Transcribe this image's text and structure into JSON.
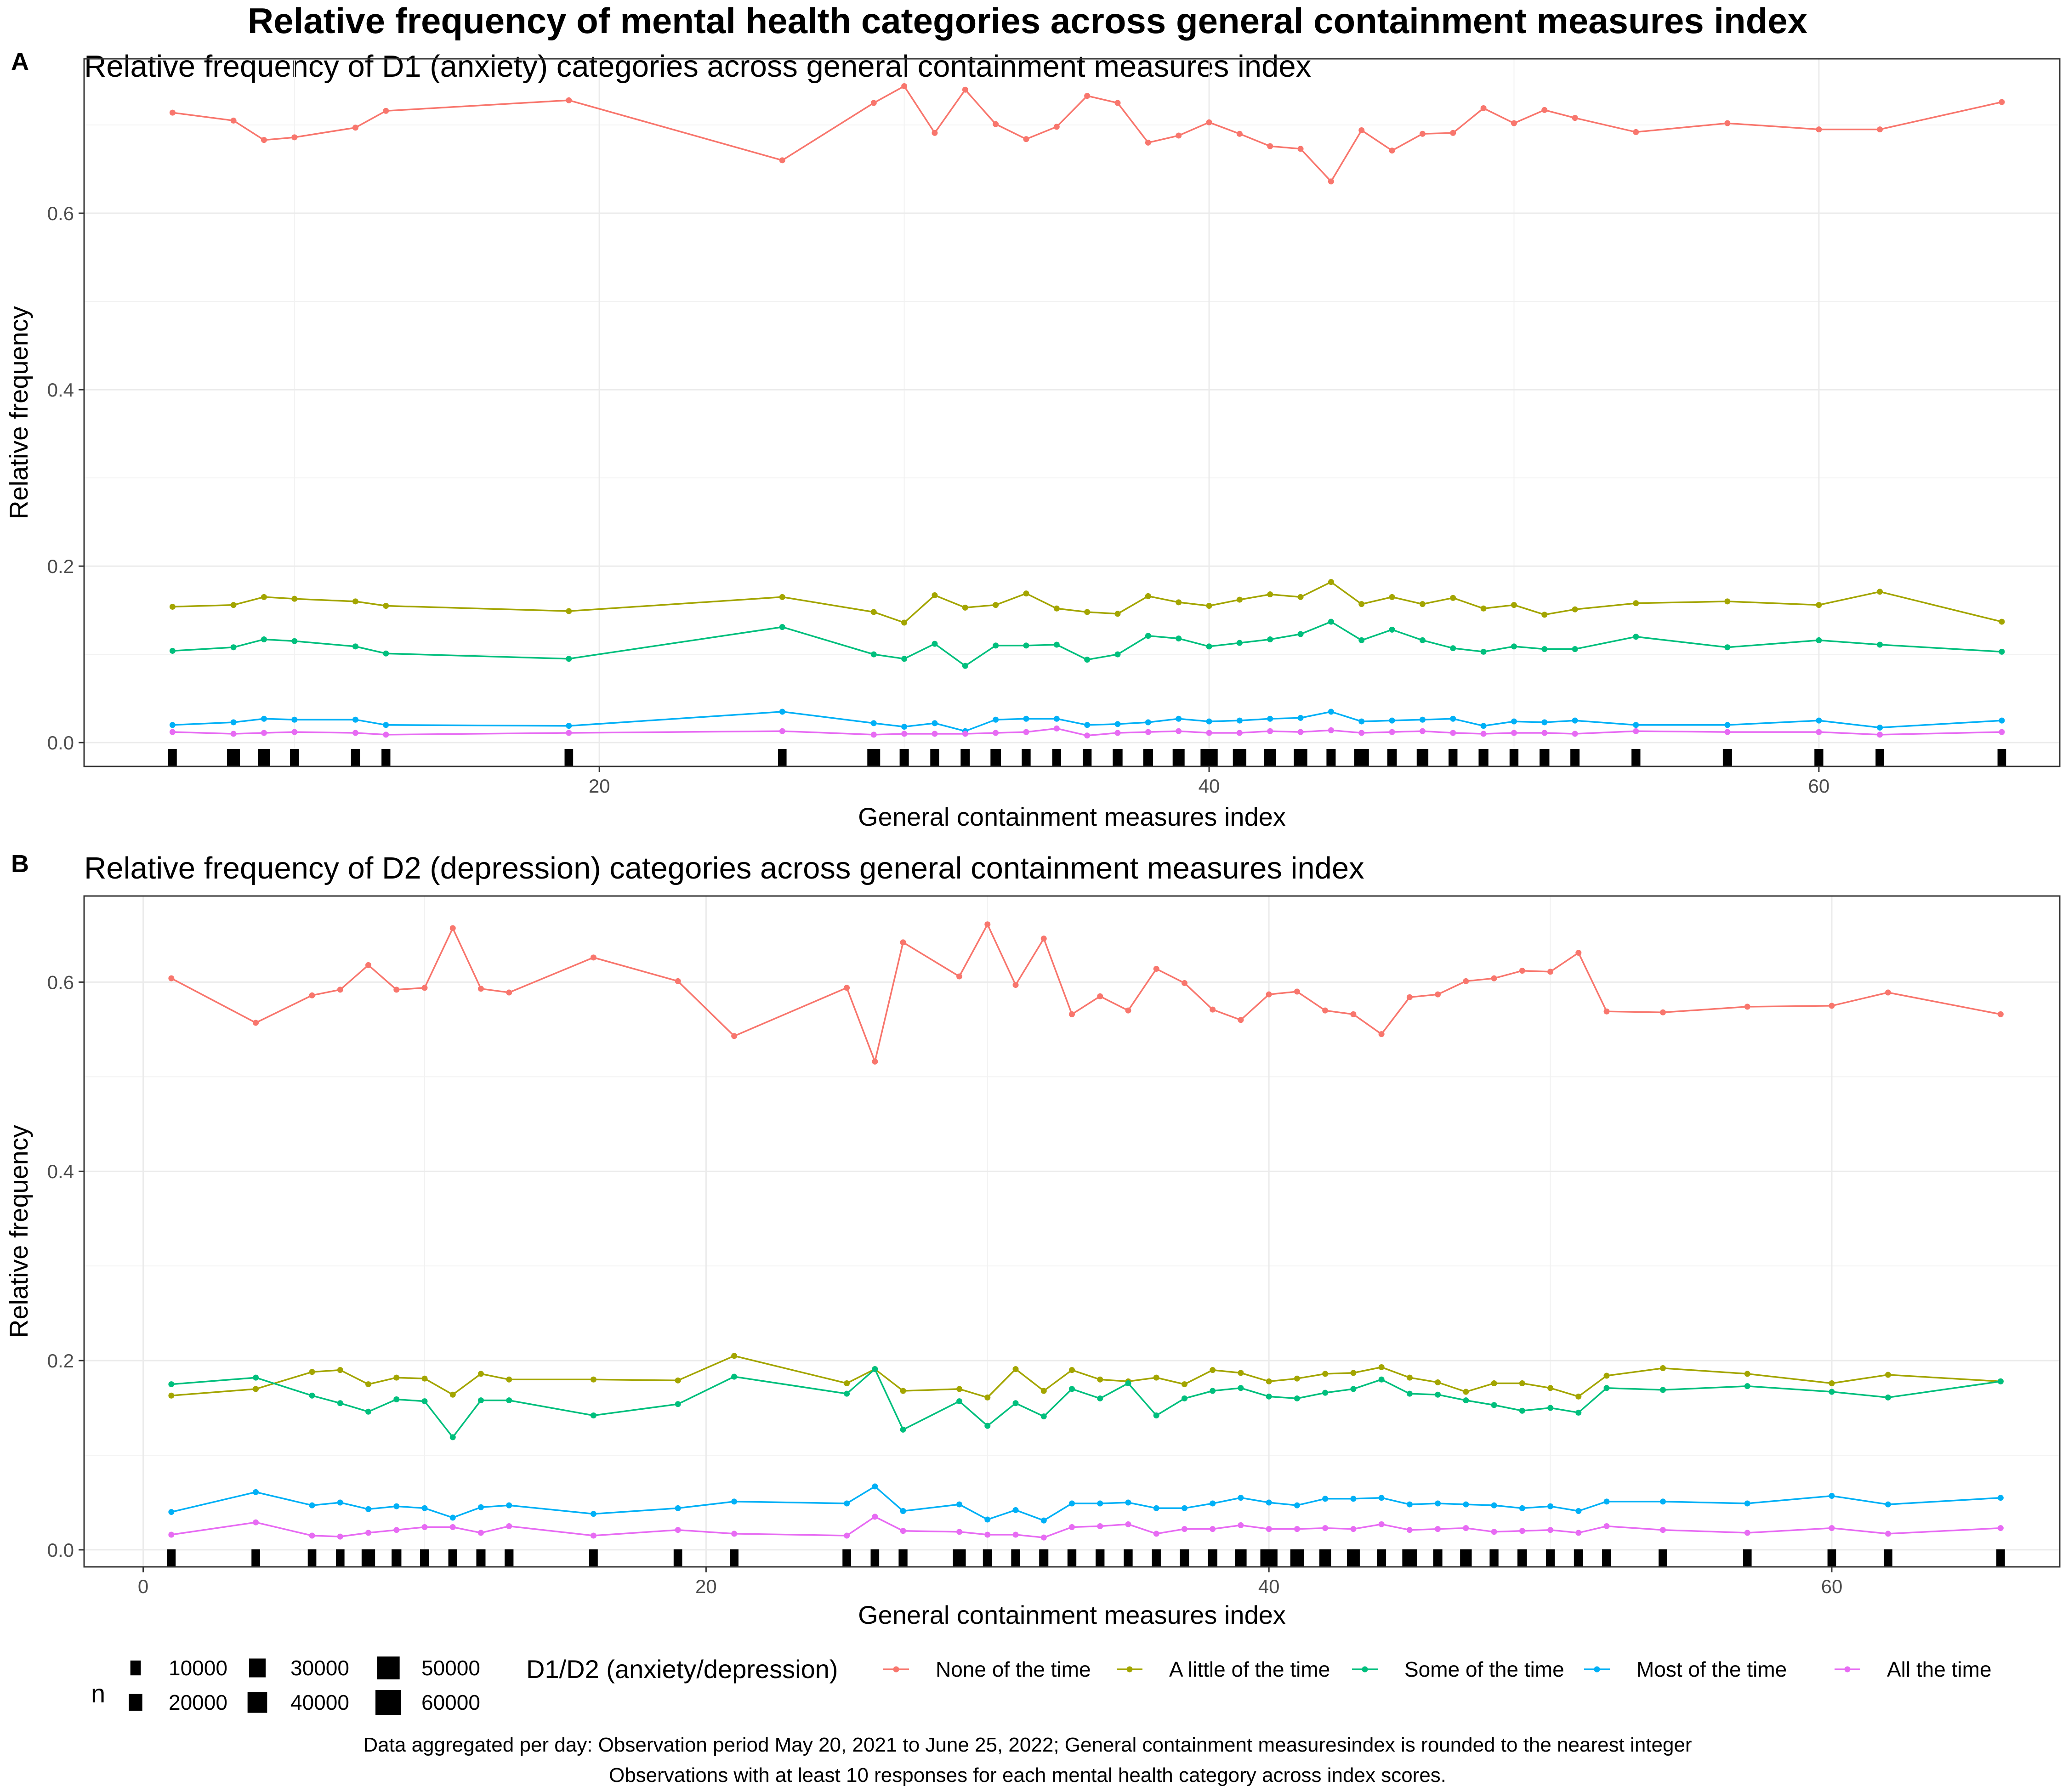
{
  "title": "Relative frequency of mental health categories across general containment measures index",
  "caption": [
    "Data aggregated per day: Observation period May 20, 2021 to June 25, 2022; General containment measuresindex is rounded to the nearest integer",
    "Observations with at least 10 responses for each mental health category across index scores."
  ],
  "legend": {
    "size_title": "n",
    "size_levels": [
      {
        "label": "10000",
        "value": 10000
      },
      {
        "label": "20000",
        "value": 20000
      },
      {
        "label": "30000",
        "value": 30000
      },
      {
        "label": "40000",
        "value": 40000
      },
      {
        "label": "50000",
        "value": 50000
      },
      {
        "label": "60000",
        "value": 60000
      }
    ],
    "color_title": "D1/D2 (anxiety/depression)",
    "categories": [
      {
        "name": "None of the time",
        "color": "#F8766D"
      },
      {
        "name": "A little of the time",
        "color": "#A3A500"
      },
      {
        "name": "Some of the time",
        "color": "#00BF7D"
      },
      {
        "name": "Most of the time",
        "color": "#00B0F6"
      },
      {
        "name": "All the time",
        "color": "#E76BF3"
      }
    ]
  },
  "chart_data": [
    {
      "tag": "A",
      "type": "line",
      "title": "Relative frequency of D1 (anxiety) categories across general containment measures index",
      "xlabel": "General containment measures index",
      "ylabel": "Relative frequency",
      "xlim": [
        3.1,
        67.9
      ],
      "ylim": [
        -0.027,
        0.775
      ],
      "xticks": [
        20,
        40,
        60
      ],
      "yticks": [
        0.0,
        0.2,
        0.4,
        0.6
      ],
      "ytick_labels": [
        "0.0",
        "0.2",
        "0.4",
        "0.6"
      ],
      "x": [
        6,
        8,
        9,
        10,
        12,
        13,
        19,
        26,
        29,
        30,
        31,
        32,
        33,
        34,
        35,
        36,
        37,
        38,
        39,
        40,
        41,
        42,
        43,
        44,
        45,
        46,
        47,
        48,
        49,
        50,
        51,
        52,
        54,
        57,
        60,
        62,
        66
      ],
      "n": [
        4000,
        18000,
        16000,
        5000,
        5000,
        5000,
        4000,
        4000,
        18000,
        6000,
        5000,
        6000,
        10000,
        5000,
        5000,
        5000,
        8000,
        8000,
        15000,
        32000,
        20000,
        15000,
        20000,
        6000,
        24000,
        7000,
        14000,
        5000,
        8000,
        5000,
        8000,
        6000,
        5000,
        6000,
        5000,
        4000,
        4000
      ],
      "series": [
        {
          "name": "None of the time",
          "values": [
            0.714,
            0.705,
            0.683,
            0.686,
            0.697,
            0.716,
            0.728,
            0.66,
            0.725,
            0.744,
            0.691,
            0.74,
            0.701,
            0.684,
            0.698,
            0.733,
            0.725,
            0.68,
            0.688,
            0.703,
            0.69,
            0.676,
            0.673,
            0.636,
            0.694,
            0.671,
            0.69,
            0.691,
            0.719,
            0.702,
            0.717,
            0.708,
            0.692,
            0.702,
            0.695,
            0.695,
            0.726
          ]
        },
        {
          "name": "A little of the time",
          "values": [
            0.154,
            0.156,
            0.165,
            0.163,
            0.16,
            0.155,
            0.149,
            0.165,
            0.148,
            0.136,
            0.167,
            0.153,
            0.156,
            0.169,
            0.152,
            0.148,
            0.146,
            0.166,
            0.159,
            0.155,
            0.162,
            0.168,
            0.165,
            0.182,
            0.157,
            0.165,
            0.157,
            0.164,
            0.152,
            0.156,
            0.145,
            0.151,
            0.158,
            0.16,
            0.156,
            0.171,
            0.137
          ]
        },
        {
          "name": "Some of the time",
          "values": [
            0.104,
            0.108,
            0.117,
            0.115,
            0.109,
            0.101,
            0.095,
            0.131,
            0.1,
            0.095,
            0.112,
            0.087,
            0.11,
            0.11,
            0.111,
            0.094,
            0.1,
            0.121,
            0.118,
            0.109,
            0.113,
            0.117,
            0.123,
            0.137,
            0.116,
            0.128,
            0.116,
            0.107,
            0.103,
            0.109,
            0.106,
            0.106,
            0.12,
            0.108,
            0.116,
            0.111,
            0.103
          ]
        },
        {
          "name": "Most of the time",
          "values": [
            0.02,
            0.023,
            0.027,
            0.026,
            0.026,
            0.02,
            0.019,
            0.035,
            0.022,
            0.018,
            0.022,
            0.013,
            0.026,
            0.027,
            0.027,
            0.02,
            0.021,
            0.023,
            0.027,
            0.024,
            0.025,
            0.027,
            0.028,
            0.035,
            0.024,
            0.025,
            0.026,
            0.027,
            0.019,
            0.024,
            0.023,
            0.025,
            0.02,
            0.02,
            0.025,
            0.017,
            0.025
          ]
        },
        {
          "name": "All the time",
          "values": [
            0.012,
            0.01,
            0.011,
            0.012,
            0.011,
            0.009,
            0.011,
            0.013,
            0.009,
            0.01,
            0.01,
            0.01,
            0.011,
            0.012,
            0.016,
            0.008,
            0.011,
            0.012,
            0.013,
            0.011,
            0.011,
            0.013,
            0.012,
            0.014,
            0.011,
            0.012,
            0.013,
            0.011,
            0.01,
            0.011,
            0.011,
            0.01,
            0.013,
            0.012,
            0.012,
            0.009,
            0.012
          ]
        }
      ]
    },
    {
      "tag": "B",
      "type": "line",
      "title": "Relative frequency of D2 (depression) categories across general containment measures index",
      "xlabel": "General containment measures index",
      "ylabel": "Relative frequency",
      "xlim": [
        -2.1,
        68.1
      ],
      "ylim": [
        -0.018,
        0.691
      ],
      "xticks": [
        0,
        20,
        40,
        60
      ],
      "yticks": [
        0.0,
        0.2,
        0.4,
        0.6
      ],
      "ytick_labels": [
        "0.0",
        "0.2",
        "0.4",
        "0.6"
      ],
      "x": [
        1,
        4,
        6,
        7,
        8,
        9,
        10,
        11,
        12,
        13,
        16,
        19,
        21,
        25,
        26,
        27,
        29,
        30,
        31,
        32,
        33,
        34,
        35,
        36,
        37,
        38,
        39,
        40,
        41,
        42,
        43,
        44,
        45,
        46,
        47,
        48,
        49,
        50,
        51,
        52,
        54,
        57,
        60,
        62,
        66
      ],
      "n": [
        4000,
        4000,
        4000,
        4000,
        20000,
        8000,
        6000,
        5000,
        6000,
        5000,
        4000,
        4000,
        4000,
        4000,
        4000,
        5000,
        18000,
        6000,
        5000,
        6000,
        5000,
        5000,
        5000,
        5000,
        6000,
        7000,
        14000,
        32000,
        20000,
        14000,
        18000,
        6000,
        24000,
        6000,
        14000,
        5000,
        7000,
        5000,
        6000,
        6000,
        4000,
        4000,
        4000,
        4000,
        4000
      ],
      "series": [
        {
          "name": "None of the time",
          "values": [
            0.604,
            0.557,
            0.586,
            0.592,
            0.618,
            0.592,
            0.594,
            0.657,
            0.593,
            0.589,
            0.626,
            0.601,
            0.543,
            0.594,
            0.516,
            0.642,
            0.606,
            0.661,
            0.597,
            0.646,
            0.566,
            0.585,
            0.57,
            0.614,
            0.599,
            0.571,
            0.56,
            0.587,
            0.59,
            0.57,
            0.566,
            0.545,
            0.584,
            0.587,
            0.601,
            0.604,
            0.612,
            0.611,
            0.631,
            0.569,
            0.568,
            0.574,
            0.575,
            0.589,
            0.566
          ]
        },
        {
          "name": "A little of the time",
          "values": [
            0.163,
            0.17,
            0.188,
            0.19,
            0.175,
            0.182,
            0.181,
            0.164,
            0.186,
            0.18,
            0.18,
            0.179,
            0.205,
            0.176,
            0.191,
            0.168,
            0.17,
            0.161,
            0.191,
            0.168,
            0.19,
            0.18,
            0.178,
            0.182,
            0.175,
            0.19,
            0.187,
            0.178,
            0.181,
            0.186,
            0.187,
            0.193,
            0.182,
            0.177,
            0.167,
            0.176,
            0.176,
            0.171,
            0.162,
            0.184,
            0.192,
            0.186,
            0.176,
            0.185,
            0.178
          ]
        },
        {
          "name": "Some of the time",
          "values": [
            0.175,
            0.182,
            0.163,
            0.155,
            0.146,
            0.159,
            0.157,
            0.119,
            0.158,
            0.158,
            0.142,
            0.154,
            0.183,
            0.165,
            0.191,
            0.127,
            0.157,
            0.131,
            0.155,
            0.141,
            0.17,
            0.16,
            0.176,
            0.142,
            0.16,
            0.168,
            0.171,
            0.162,
            0.16,
            0.166,
            0.17,
            0.18,
            0.165,
            0.164,
            0.158,
            0.153,
            0.147,
            0.15,
            0.145,
            0.171,
            0.169,
            0.173,
            0.167,
            0.161,
            0.178
          ]
        },
        {
          "name": "Most of the time",
          "values": [
            0.04,
            0.061,
            0.047,
            0.05,
            0.043,
            0.046,
            0.044,
            0.034,
            0.045,
            0.047,
            0.038,
            0.044,
            0.051,
            0.049,
            0.067,
            0.041,
            0.048,
            0.032,
            0.042,
            0.031,
            0.049,
            0.049,
            0.05,
            0.044,
            0.044,
            0.049,
            0.055,
            0.05,
            0.047,
            0.054,
            0.054,
            0.055,
            0.048,
            0.049,
            0.048,
            0.047,
            0.044,
            0.046,
            0.041,
            0.051,
            0.051,
            0.049,
            0.057,
            0.048,
            0.055
          ]
        },
        {
          "name": "All the time",
          "values": [
            0.016,
            0.029,
            0.015,
            0.014,
            0.018,
            0.021,
            0.024,
            0.024,
            0.018,
            0.025,
            0.015,
            0.021,
            0.017,
            0.015,
            0.035,
            0.02,
            0.019,
            0.016,
            0.016,
            0.013,
            0.024,
            0.025,
            0.027,
            0.017,
            0.022,
            0.022,
            0.026,
            0.022,
            0.022,
            0.023,
            0.022,
            0.027,
            0.021,
            0.022,
            0.023,
            0.019,
            0.02,
            0.021,
            0.018,
            0.025,
            0.021,
            0.018,
            0.023,
            0.017,
            0.023
          ]
        }
      ]
    }
  ]
}
